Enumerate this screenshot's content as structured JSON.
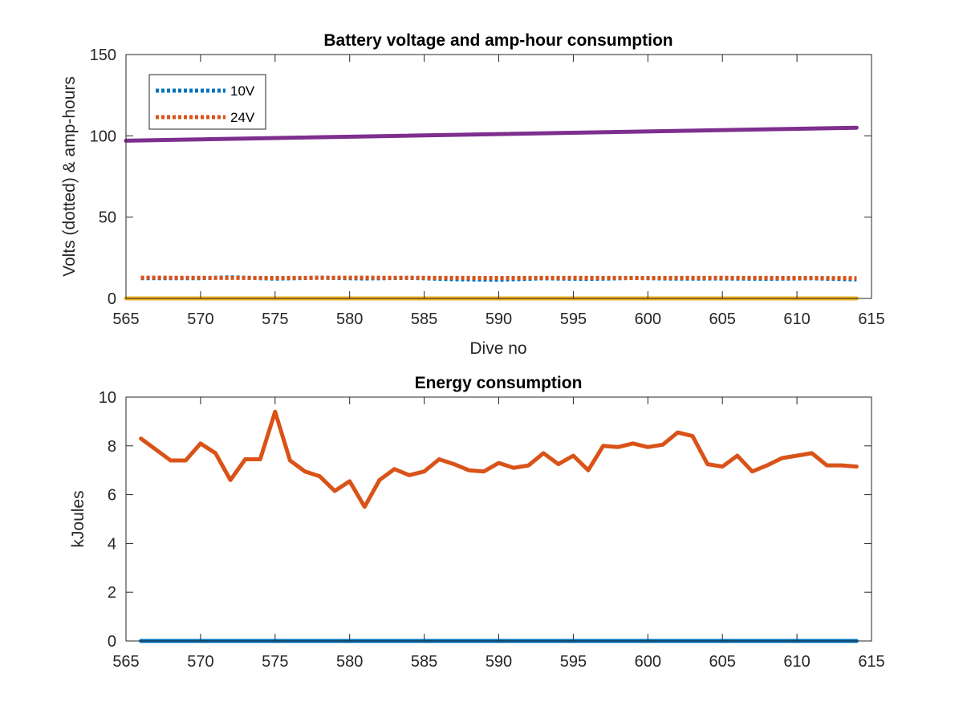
{
  "chart_data": [
    {
      "type": "line",
      "title": "Battery voltage and amp-hour consumption",
      "xlabel": "Dive no",
      "ylabel": "Volts (dotted) & amp-hours",
      "xlim": [
        565,
        615
      ],
      "ylim": [
        0,
        150
      ],
      "xticks": [
        565,
        570,
        575,
        580,
        585,
        590,
        595,
        600,
        605,
        610,
        615
      ],
      "yticks": [
        0,
        50,
        100,
        150
      ],
      "grid": false,
      "legend_position": "top-left",
      "series": [
        {
          "name": "10V",
          "style": "dotted",
          "color": "#0072BD",
          "x": [
            566,
            570,
            572,
            575,
            578,
            581,
            584,
            587,
            590,
            593,
            596,
            599,
            602,
            605,
            608,
            611,
            614
          ],
          "y": [
            12.5,
            12.5,
            13,
            12.2,
            12.8,
            12.3,
            12.7,
            11.8,
            11.5,
            12.4,
            12.0,
            12.6,
            12.2,
            12.3,
            12.1,
            12.4,
            11.7
          ]
        },
        {
          "name": "24V",
          "style": "dotted",
          "color": "#D95319",
          "x": [
            566,
            570,
            575,
            580,
            585,
            590,
            595,
            600,
            605,
            610,
            614
          ],
          "y": [
            12.8,
            12.7,
            12.6,
            12.8,
            12.7,
            12.6,
            12.7,
            12.6,
            12.7,
            12.6,
            12.5
          ]
        },
        {
          "style": "solid",
          "color": "#7E2F8E",
          "x": [
            565,
            614
          ],
          "y": [
            97,
            105
          ]
        },
        {
          "style": "solid",
          "color": "#EDB120",
          "x": [
            565,
            614
          ],
          "y": [
            0,
            0
          ]
        }
      ]
    },
    {
      "type": "line",
      "title": "Energy consumption",
      "xlabel": "",
      "ylabel": "kJoules",
      "xlim": [
        565,
        615
      ],
      "ylim": [
        0,
        10
      ],
      "xticks": [
        565,
        570,
        575,
        580,
        585,
        590,
        595,
        600,
        605,
        610,
        615
      ],
      "yticks": [
        0,
        2,
        4,
        6,
        8,
        10
      ],
      "grid": false,
      "series": [
        {
          "style": "solid",
          "color": "#0072BD",
          "x": [
            566,
            614
          ],
          "y": [
            0,
            0
          ]
        },
        {
          "style": "solid",
          "color": "#D95319",
          "x": [
            566,
            567,
            568,
            569,
            570,
            571,
            572,
            573,
            574,
            575,
            576,
            577,
            578,
            579,
            580,
            581,
            582,
            583,
            584,
            585,
            586,
            587,
            588,
            589,
            590,
            591,
            592,
            593,
            594,
            595,
            596,
            597,
            598,
            599,
            600,
            601,
            602,
            603,
            604,
            605,
            606,
            607,
            608,
            609,
            610,
            611,
            612,
            613,
            614
          ],
          "y": [
            8.3,
            7.85,
            7.4,
            7.4,
            8.1,
            7.7,
            6.6,
            7.45,
            7.45,
            9.4,
            7.4,
            6.95,
            6.75,
            6.15,
            6.55,
            5.5,
            6.6,
            7.05,
            6.8,
            6.95,
            7.45,
            7.25,
            7.0,
            6.95,
            7.3,
            7.1,
            7.2,
            7.7,
            7.25,
            7.6,
            7.0,
            8.0,
            7.95,
            8.1,
            7.95,
            8.05,
            8.55,
            8.4,
            7.25,
            7.15,
            7.6,
            6.95,
            7.2,
            7.5,
            7.6,
            7.7,
            7.2,
            7.2,
            7.15
          ]
        }
      ]
    }
  ]
}
